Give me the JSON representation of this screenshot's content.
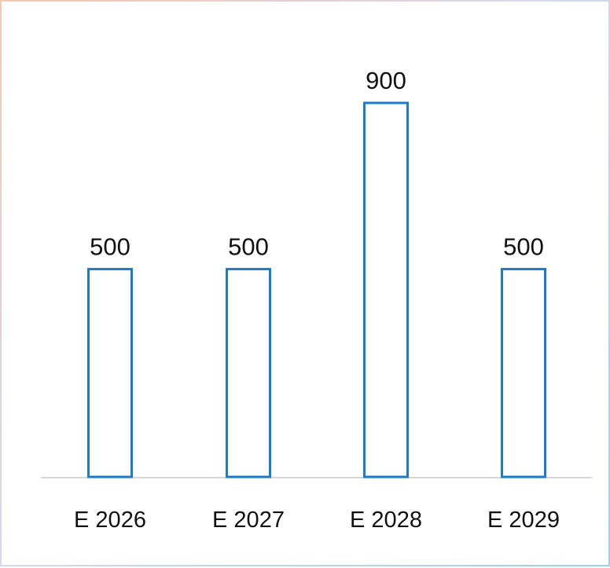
{
  "chart_data": {
    "type": "bar",
    "categories": [
      "E 2026",
      "E 2027",
      "E 2028",
      "E 2029"
    ],
    "values": [
      500,
      500,
      900,
      500
    ],
    "data_labels": [
      "500",
      "500",
      "900",
      "500"
    ],
    "title": "",
    "xlabel": "",
    "ylabel": "",
    "ylim": [
      0,
      900
    ],
    "grid": false,
    "legend": "none",
    "bar_style": "outline",
    "colors": {
      "bar_stroke": "#1a7ccb",
      "bar_fill": "#ffffff",
      "baseline": "#c8c8c8",
      "text": "#111111"
    }
  }
}
